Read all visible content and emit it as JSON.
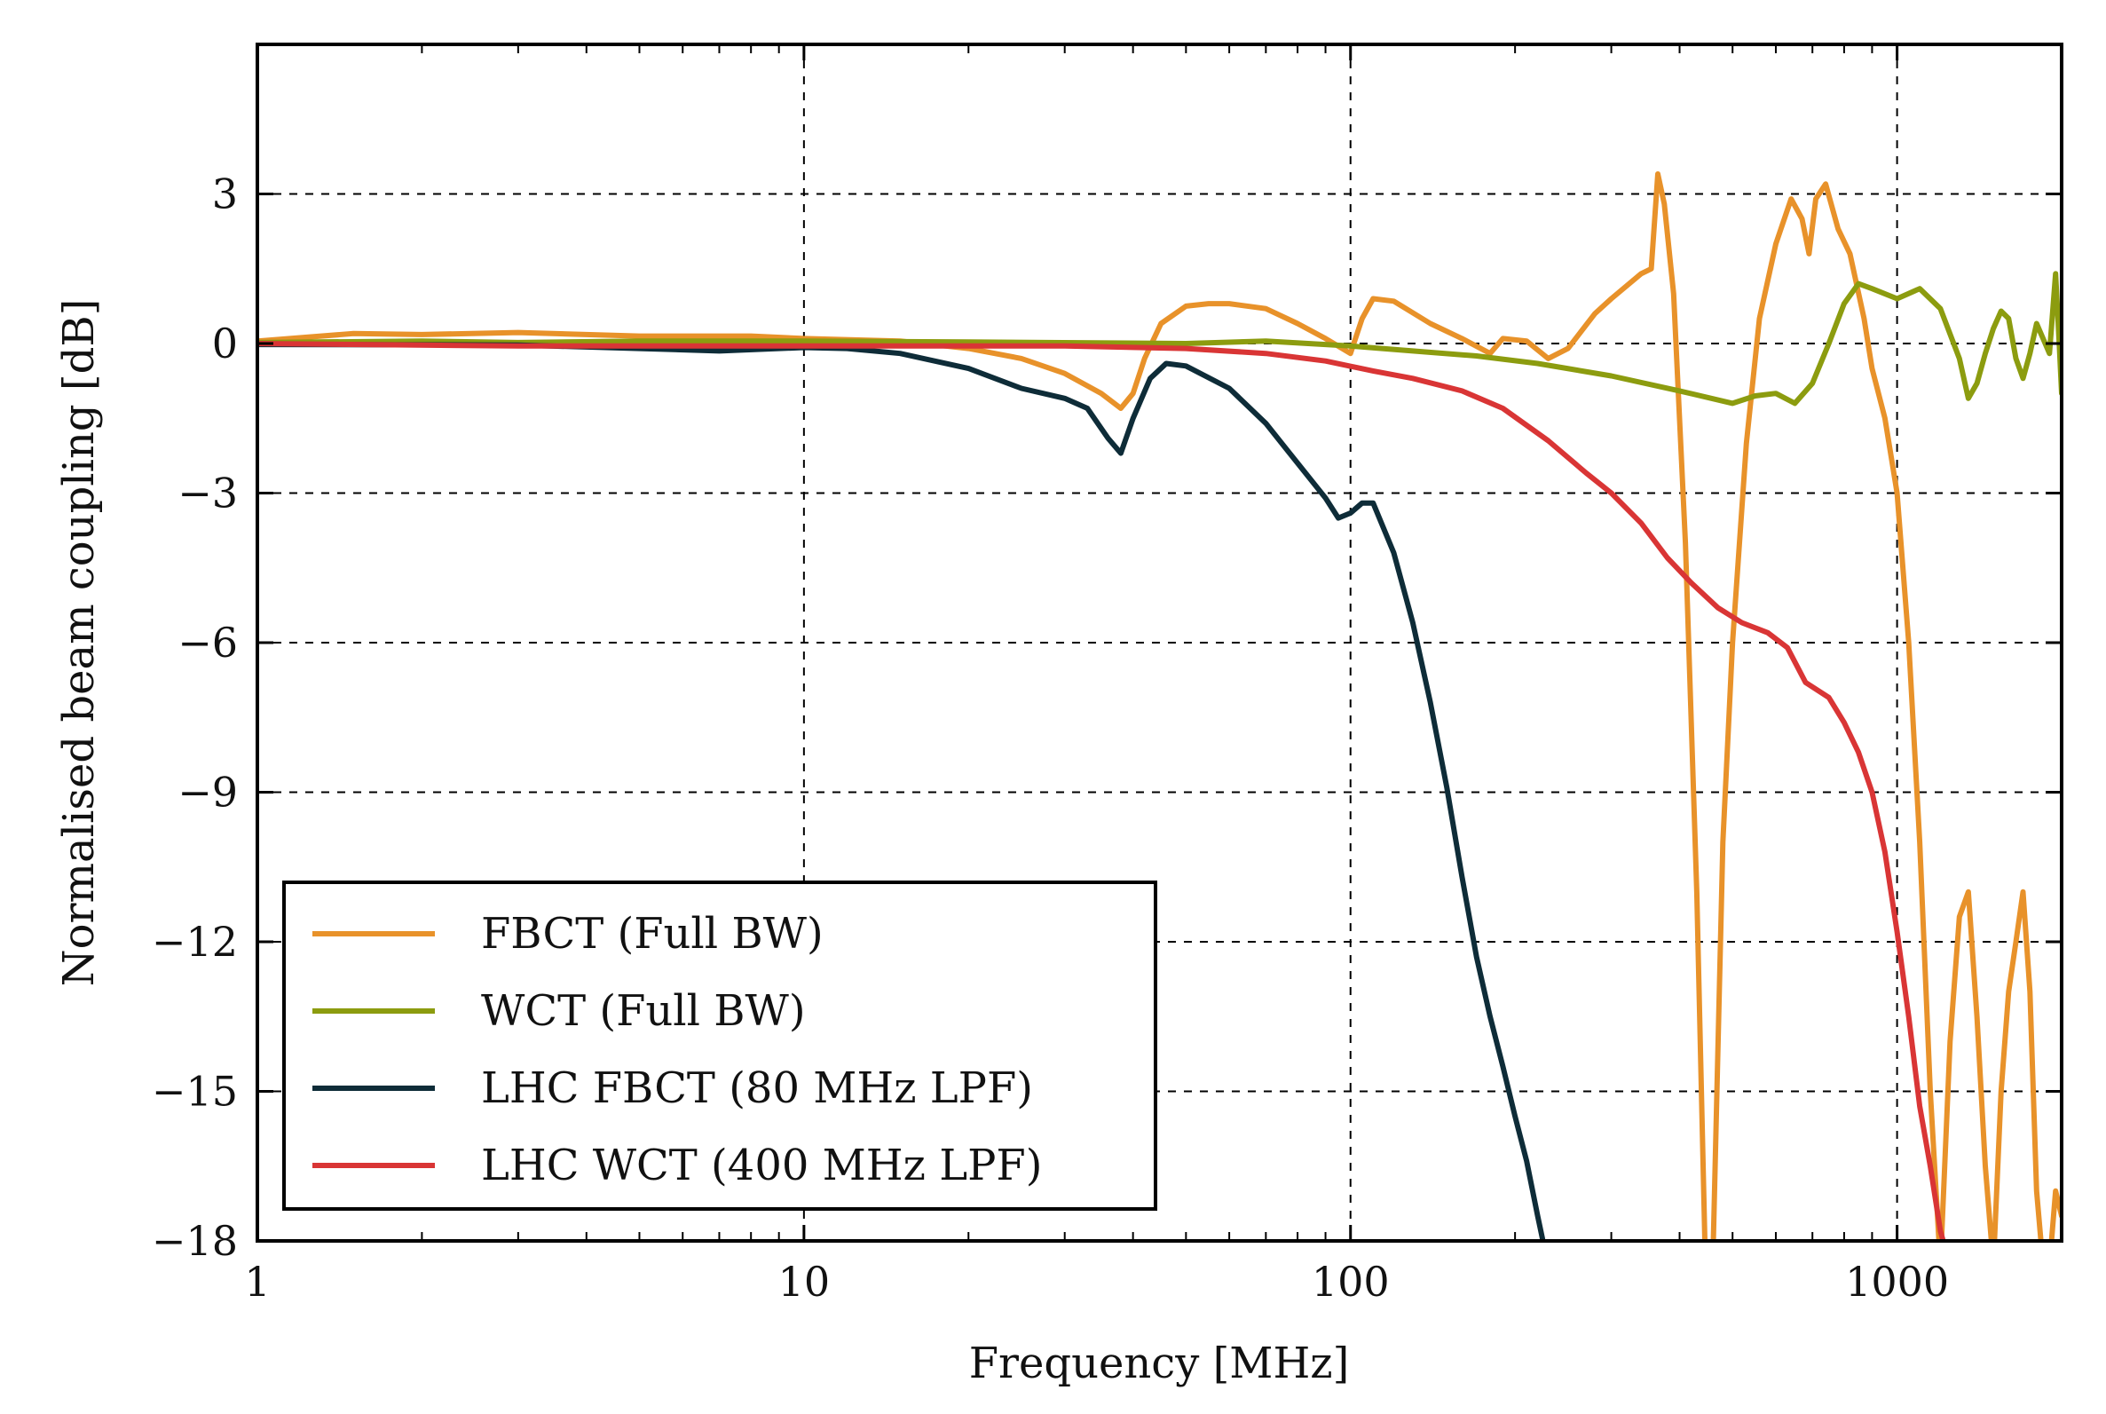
{
  "chart_data": {
    "type": "line",
    "title": "",
    "xlabel": "Frequency [MHz]",
    "ylabel": "Normalised beam coupling [dB]",
    "xscale": "log",
    "xlim": [
      1,
      2000
    ],
    "ylim": [
      -18,
      6
    ],
    "grid": true,
    "legend_position": "lower-left",
    "x_ticks": [
      {
        "value": 1,
        "label": "1"
      },
      {
        "value": 10,
        "label": "10"
      },
      {
        "value": 100,
        "label": "100"
      },
      {
        "value": 1000,
        "label": "1000"
      }
    ],
    "y_ticks": [
      {
        "value": 3,
        "label": "3"
      },
      {
        "value": 0,
        "label": "0"
      },
      {
        "value": -3,
        "label": "−3"
      },
      {
        "value": -6,
        "label": "−6"
      },
      {
        "value": -9,
        "label": "−9"
      },
      {
        "value": -12,
        "label": "−12"
      },
      {
        "value": -15,
        "label": "−15"
      },
      {
        "value": -18,
        "label": "−18"
      }
    ],
    "series": [
      {
        "name": "FBCT (Full BW)",
        "color": "#E8922A",
        "points": [
          [
            1,
            0.05
          ],
          [
            1.5,
            0.2
          ],
          [
            2,
            0.18
          ],
          [
            3,
            0.22
          ],
          [
            5,
            0.15
          ],
          [
            8,
            0.15
          ],
          [
            10,
            0.1
          ],
          [
            15,
            0.05
          ],
          [
            20,
            -0.1
          ],
          [
            25,
            -0.3
          ],
          [
            30,
            -0.6
          ],
          [
            35,
            -1.0
          ],
          [
            38,
            -1.3
          ],
          [
            40,
            -1.0
          ],
          [
            42,
            -0.3
          ],
          [
            45,
            0.4
          ],
          [
            50,
            0.75
          ],
          [
            55,
            0.8
          ],
          [
            60,
            0.8
          ],
          [
            70,
            0.7
          ],
          [
            80,
            0.4
          ],
          [
            90,
            0.1
          ],
          [
            100,
            -0.2
          ],
          [
            105,
            0.5
          ],
          [
            110,
            0.9
          ],
          [
            120,
            0.85
          ],
          [
            140,
            0.4
          ],
          [
            160,
            0.1
          ],
          [
            180,
            -0.2
          ],
          [
            190,
            0.1
          ],
          [
            210,
            0.05
          ],
          [
            230,
            -0.3
          ],
          [
            250,
            -0.1
          ],
          [
            280,
            0.6
          ],
          [
            300,
            0.9
          ],
          [
            340,
            1.4
          ],
          [
            355,
            1.5
          ],
          [
            365,
            3.4
          ],
          [
            375,
            2.8
          ],
          [
            390,
            1.0
          ],
          [
            410,
            -4.0
          ],
          [
            430,
            -11.0
          ],
          [
            445,
            -18.0
          ],
          [
            460,
            -18.5
          ],
          [
            480,
            -10.0
          ],
          [
            500,
            -6.0
          ],
          [
            530,
            -2.0
          ],
          [
            560,
            0.5
          ],
          [
            600,
            2.0
          ],
          [
            640,
            2.9
          ],
          [
            670,
            2.5
          ],
          [
            690,
            1.8
          ],
          [
            710,
            2.9
          ],
          [
            740,
            3.2
          ],
          [
            780,
            2.3
          ],
          [
            820,
            1.8
          ],
          [
            870,
            0.5
          ],
          [
            900,
            -0.5
          ],
          [
            950,
            -1.5
          ],
          [
            1000,
            -3.0
          ],
          [
            1050,
            -6.0
          ],
          [
            1100,
            -10.0
          ],
          [
            1150,
            -15.0
          ],
          [
            1200,
            -18.5
          ],
          [
            1250,
            -14.0
          ],
          [
            1300,
            -11.5
          ],
          [
            1350,
            -11.0
          ],
          [
            1400,
            -13.5
          ],
          [
            1450,
            -16.5
          ],
          [
            1500,
            -18.5
          ],
          [
            1550,
            -15.0
          ],
          [
            1600,
            -13.0
          ],
          [
            1650,
            -12.0
          ],
          [
            1700,
            -11.0
          ],
          [
            1750,
            -13.0
          ],
          [
            1800,
            -17.0
          ],
          [
            1850,
            -18.5
          ],
          [
            1900,
            -18.5
          ],
          [
            1950,
            -17.0
          ],
          [
            2000,
            -17.5
          ]
        ]
      },
      {
        "name": "WCT (Full BW)",
        "color": "#8C9C0F",
        "points": [
          [
            1,
            0.02
          ],
          [
            2,
            0.05
          ],
          [
            3,
            0.02
          ],
          [
            5,
            0.05
          ],
          [
            10,
            0.05
          ],
          [
            20,
            0.03
          ],
          [
            50,
            0.0
          ],
          [
            70,
            0.05
          ],
          [
            100,
            -0.05
          ],
          [
            130,
            -0.15
          ],
          [
            170,
            -0.25
          ],
          [
            220,
            -0.4
          ],
          [
            300,
            -0.65
          ],
          [
            400,
            -0.95
          ],
          [
            500,
            -1.2
          ],
          [
            550,
            -1.05
          ],
          [
            600,
            -1.0
          ],
          [
            650,
            -1.2
          ],
          [
            700,
            -0.8
          ],
          [
            750,
            0.0
          ],
          [
            800,
            0.8
          ],
          [
            850,
            1.2
          ],
          [
            900,
            1.1
          ],
          [
            1000,
            0.9
          ],
          [
            1100,
            1.1
          ],
          [
            1200,
            0.7
          ],
          [
            1300,
            -0.3
          ],
          [
            1350,
            -1.1
          ],
          [
            1400,
            -0.8
          ],
          [
            1450,
            -0.2
          ],
          [
            1500,
            0.3
          ],
          [
            1550,
            0.65
          ],
          [
            1600,
            0.5
          ],
          [
            1650,
            -0.3
          ],
          [
            1700,
            -0.7
          ],
          [
            1750,
            -0.2
          ],
          [
            1800,
            0.4
          ],
          [
            1850,
            0.1
          ],
          [
            1900,
            -0.2
          ],
          [
            1950,
            1.4
          ],
          [
            1980,
            0.0
          ],
          [
            2000,
            -1.0
          ]
        ]
      },
      {
        "name": "LHC FBCT (80 MHz LPF)",
        "color": "#0E2C38",
        "points": [
          [
            1,
            -0.02
          ],
          [
            3,
            -0.03
          ],
          [
            5,
            -0.1
          ],
          [
            7,
            -0.15
          ],
          [
            10,
            -0.08
          ],
          [
            12,
            -0.1
          ],
          [
            15,
            -0.2
          ],
          [
            20,
            -0.5
          ],
          [
            25,
            -0.9
          ],
          [
            30,
            -1.1
          ],
          [
            33,
            -1.3
          ],
          [
            36,
            -1.9
          ],
          [
            38,
            -2.2
          ],
          [
            40,
            -1.5
          ],
          [
            43,
            -0.7
          ],
          [
            46,
            -0.4
          ],
          [
            50,
            -0.45
          ],
          [
            60,
            -0.9
          ],
          [
            70,
            -1.6
          ],
          [
            80,
            -2.4
          ],
          [
            90,
            -3.1
          ],
          [
            95,
            -3.5
          ],
          [
            100,
            -3.4
          ],
          [
            105,
            -3.2
          ],
          [
            110,
            -3.2
          ],
          [
            120,
            -4.2
          ],
          [
            130,
            -5.6
          ],
          [
            140,
            -7.2
          ],
          [
            150,
            -8.9
          ],
          [
            160,
            -10.7
          ],
          [
            170,
            -12.3
          ],
          [
            180,
            -13.5
          ],
          [
            190,
            -14.5
          ],
          [
            200,
            -15.5
          ],
          [
            210,
            -16.4
          ],
          [
            220,
            -17.5
          ],
          [
            230,
            -18.5
          ]
        ]
      },
      {
        "name": "LHC WCT (400 MHz LPF)",
        "color": "#D93535",
        "points": [
          [
            1,
            0.0
          ],
          [
            3,
            -0.05
          ],
          [
            10,
            -0.05
          ],
          [
            30,
            -0.05
          ],
          [
            50,
            -0.1
          ],
          [
            70,
            -0.2
          ],
          [
            90,
            -0.35
          ],
          [
            110,
            -0.55
          ],
          [
            130,
            -0.7
          ],
          [
            160,
            -0.95
          ],
          [
            190,
            -1.3
          ],
          [
            230,
            -1.95
          ],
          [
            270,
            -2.6
          ],
          [
            300,
            -3.0
          ],
          [
            340,
            -3.6
          ],
          [
            380,
            -4.3
          ],
          [
            420,
            -4.8
          ],
          [
            470,
            -5.3
          ],
          [
            520,
            -5.6
          ],
          [
            580,
            -5.8
          ],
          [
            630,
            -6.1
          ],
          [
            680,
            -6.8
          ],
          [
            750,
            -7.1
          ],
          [
            800,
            -7.6
          ],
          [
            850,
            -8.2
          ],
          [
            900,
            -9.0
          ],
          [
            950,
            -10.2
          ],
          [
            1000,
            -11.8
          ],
          [
            1050,
            -13.5
          ],
          [
            1100,
            -15.3
          ],
          [
            1150,
            -16.5
          ],
          [
            1200,
            -17.8
          ],
          [
            1250,
            -18.5
          ]
        ]
      }
    ]
  }
}
